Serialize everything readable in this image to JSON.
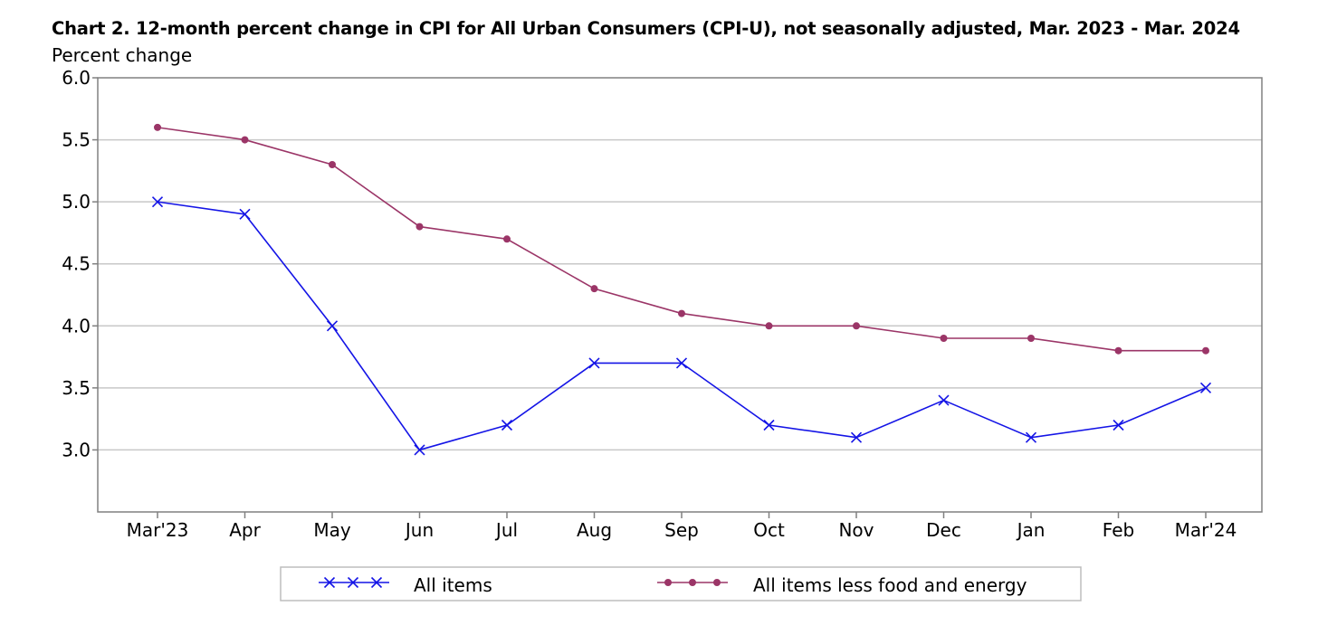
{
  "title": "Chart 2. 12-month percent change in CPI for All Urban Consumers (CPI-U), not seasonally adjusted, Mar. 2023 - Mar. 2024",
  "y_unit_label": "Percent change",
  "chart_data": {
    "type": "line",
    "title": "Chart 2. 12-month percent change in CPI for All Urban Consumers (CPI-U), not seasonally adjusted, Mar. 2023 - Mar. 2024",
    "ylabel": "Percent change",
    "xlabel": "",
    "categories": [
      "Mar'23",
      "Apr",
      "May",
      "Jun",
      "Jul",
      "Aug",
      "Sep",
      "Oct",
      "Nov",
      "Dec",
      "Jan",
      "Feb",
      "Mar'24"
    ],
    "ylim": [
      2.5,
      6.0
    ],
    "yticks": [
      3.0,
      3.5,
      4.0,
      4.5,
      5.0,
      5.5,
      6.0
    ],
    "ytick_labels": [
      "3.0",
      "3.5",
      "4.0",
      "4.5",
      "5.0",
      "5.5",
      "6.0"
    ],
    "grid": true,
    "legend_position": "bottom",
    "series": [
      {
        "name": "All items",
        "color": "#1414e6",
        "marker": "x",
        "values": [
          5.0,
          4.9,
          4.0,
          3.0,
          3.2,
          3.7,
          3.7,
          3.2,
          3.1,
          3.4,
          3.1,
          3.2,
          3.5
        ]
      },
      {
        "name": "All items less food and energy",
        "color": "#9b3567",
        "marker": "circle",
        "values": [
          5.6,
          5.5,
          5.3,
          4.8,
          4.7,
          4.3,
          4.1,
          4.0,
          4.0,
          3.9,
          3.9,
          3.8,
          3.8
        ]
      }
    ]
  }
}
